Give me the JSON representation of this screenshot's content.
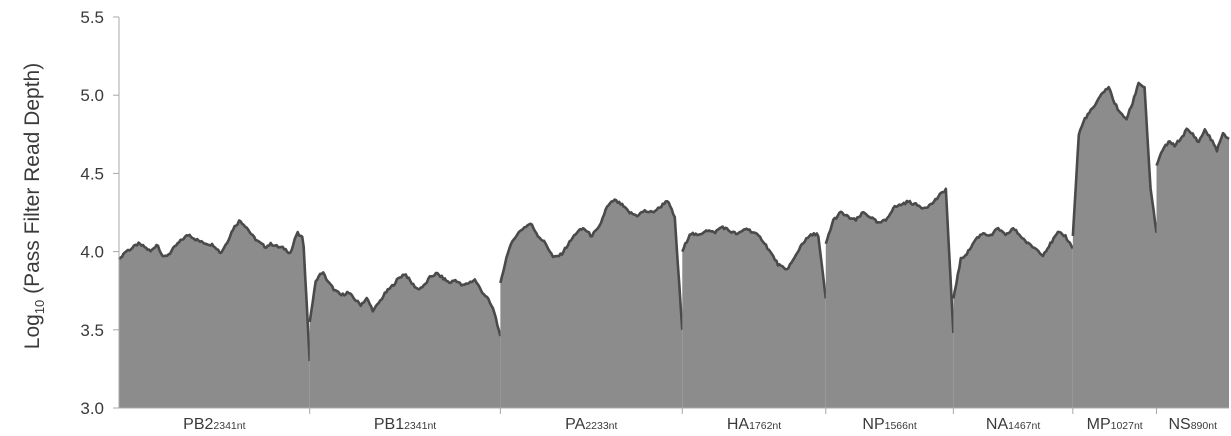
{
  "chart_data": {
    "type": "area",
    "title": "",
    "ylabel": {
      "prefix": "Log",
      "subscript": "10",
      "suffix": " (Pass Filter Read Depth)"
    },
    "xlabel": "",
    "ylim": [
      3.0,
      5.5
    ],
    "yticks": [
      "3.0",
      "3.5",
      "4.0",
      "4.5",
      "5.0",
      "5.5"
    ],
    "grid": false,
    "legend": "none",
    "colors": {
      "fill": "#8c8c8c",
      "line": "#4a4a4a",
      "axis": "#a8a8a8",
      "text": "#3a3a3a"
    },
    "segments": [
      {
        "name": "PB2",
        "length_label": "2341nt",
        "length": 2341,
        "profile": [
          3.95,
          4.0,
          4.02,
          4.05,
          4.03,
          4.0,
          4.05,
          3.96,
          3.99,
          4.04,
          4.08,
          4.11,
          4.08,
          4.06,
          4.05,
          4.04,
          3.99,
          4.06,
          4.15,
          4.2,
          4.16,
          4.1,
          4.06,
          4.03,
          4.05,
          4.03,
          4.02,
          3.99,
          4.12,
          4.08,
          3.3
        ]
      },
      {
        "name": "PB1",
        "length_label": "2341nt",
        "length": 2341,
        "profile": [
          3.55,
          3.82,
          3.87,
          3.8,
          3.75,
          3.72,
          3.74,
          3.7,
          3.66,
          3.7,
          3.62,
          3.68,
          3.74,
          3.78,
          3.83,
          3.86,
          3.8,
          3.76,
          3.78,
          3.84,
          3.86,
          3.83,
          3.8,
          3.82,
          3.78,
          3.8,
          3.82,
          3.75,
          3.7,
          3.62,
          3.46
        ]
      },
      {
        "name": "PA",
        "length_label": "2233nt",
        "length": 2233,
        "profile": [
          3.8,
          4.0,
          4.1,
          4.15,
          4.18,
          4.1,
          4.05,
          3.96,
          3.98,
          4.05,
          4.12,
          4.15,
          4.1,
          4.15,
          4.28,
          4.33,
          4.3,
          4.25,
          4.23,
          4.26,
          4.25,
          4.28,
          4.33,
          4.22,
          3.5
        ]
      },
      {
        "name": "HA",
        "length_label": "1762nt",
        "length": 1762,
        "profile": [
          4.0,
          4.12,
          4.1,
          4.14,
          4.12,
          4.16,
          4.13,
          4.11,
          4.15,
          4.12,
          4.08,
          4.0,
          3.92,
          3.88,
          3.95,
          4.05,
          4.1,
          4.12,
          3.7
        ]
      },
      {
        "name": "NP",
        "length_label": "1566nt",
        "length": 1566,
        "profile": [
          4.05,
          4.2,
          4.25,
          4.22,
          4.2,
          4.25,
          4.22,
          4.18,
          4.2,
          4.28,
          4.3,
          4.32,
          4.3,
          4.28,
          4.3,
          4.35,
          4.4,
          3.48
        ]
      },
      {
        "name": "NA",
        "length_label": "1467nt",
        "length": 1467,
        "profile": [
          3.7,
          3.95,
          4.0,
          4.08,
          4.12,
          4.1,
          4.15,
          4.1,
          4.15,
          4.1,
          4.05,
          4.02,
          3.98,
          4.05,
          4.12,
          4.1,
          4.02
        ]
      },
      {
        "name": "MP",
        "length_label": "1027nt",
        "length": 1027,
        "profile": [
          4.1,
          4.75,
          4.85,
          4.9,
          4.95,
          5.02,
          5.05,
          4.95,
          4.88,
          4.85,
          4.95,
          5.08,
          5.05,
          4.4,
          4.12
        ]
      },
      {
        "name": "NS",
        "length_label": "890nt",
        "length": 890,
        "profile": [
          4.55,
          4.65,
          4.7,
          4.68,
          4.72,
          4.78,
          4.75,
          4.7,
          4.78,
          4.72,
          4.65,
          4.75,
          4.72
        ]
      }
    ]
  }
}
